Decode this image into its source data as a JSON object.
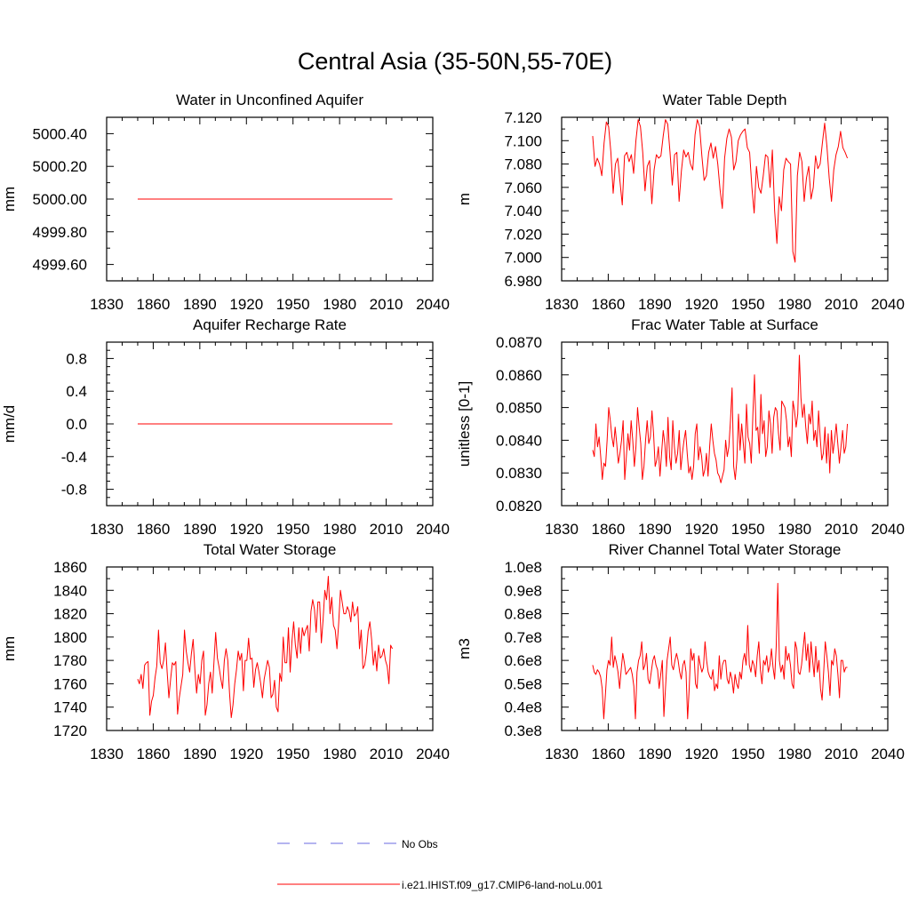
{
  "title": "Central Asia (35-50N,55-70E)",
  "legend": {
    "entries": [
      {
        "label": "No Obs",
        "color": "#6a6ae0",
        "style": "dashed"
      },
      {
        "label": "i.e21.IHIST.f09_g17.CMIP6-land-noLu.001",
        "color": "#ff0000",
        "style": "solid"
      }
    ]
  },
  "chart_data": [
    {
      "type": "line",
      "title": "Water in Unconfined Aquifer",
      "ylabel": "mm",
      "xlim": [
        1830,
        2040
      ],
      "ylim": [
        4999.5,
        5000.5
      ],
      "xticks": [
        1830,
        1860,
        1890,
        1920,
        1950,
        1980,
        2010,
        2040
      ],
      "yticks": [
        4999.6,
        4999.8,
        5000.0,
        5000.2,
        5000.4
      ],
      "ytick_labels": [
        "4999.60",
        "4999.80",
        "5000.00",
        "5000.20",
        "5000.40"
      ],
      "series": [
        {
          "color": "#ff0000",
          "x_start": 1850,
          "x_end": 2014,
          "constant": 5000.0
        }
      ]
    },
    {
      "type": "line",
      "title": "Water Table Depth",
      "ylabel": "m",
      "xlim": [
        1830,
        2040
      ],
      "ylim": [
        6.98,
        7.12
      ],
      "xticks": [
        1830,
        1860,
        1890,
        1920,
        1950,
        1980,
        2010,
        2040
      ],
      "yticks": [
        6.98,
        7.0,
        7.02,
        7.04,
        7.06,
        7.08,
        7.1,
        7.12
      ],
      "ytick_labels": [
        "6.980",
        "7.000",
        "7.020",
        "7.040",
        "7.060",
        "7.080",
        "7.100",
        "7.120"
      ],
      "series": [
        {
          "color": "#ff0000",
          "x_start": 1850,
          "x_step": 1,
          "values": [
            7.104,
            7.078,
            7.085,
            7.08,
            7.07,
            7.098,
            7.116,
            7.112,
            7.09,
            7.055,
            7.08,
            7.085,
            7.065,
            7.045,
            7.087,
            7.09,
            7.082,
            7.088,
            7.072,
            7.1,
            7.118,
            7.112,
            7.09,
            7.057,
            7.078,
            7.083,
            7.046,
            7.075,
            7.088,
            7.085,
            7.087,
            7.104,
            7.118,
            7.114,
            7.09,
            7.062,
            7.088,
            7.09,
            7.048,
            7.074,
            7.092,
            7.086,
            7.09,
            7.08,
            7.075,
            7.105,
            7.118,
            7.112,
            7.087,
            7.066,
            7.07,
            7.09,
            7.098,
            7.085,
            7.095,
            7.08,
            7.058,
            7.042,
            7.085,
            7.102,
            7.11,
            7.103,
            7.075,
            7.082,
            7.1,
            7.105,
            7.108,
            7.11,
            7.094,
            7.09,
            7.06,
            7.038,
            7.078,
            7.06,
            7.055,
            7.07,
            7.088,
            7.086,
            7.06,
            7.092,
            7.04,
            7.012,
            7.052,
            7.04,
            7.075,
            7.085,
            7.082,
            7.08,
            7.005,
            6.996,
            7.07,
            7.09,
            7.082,
            7.048,
            7.068,
            7.078,
            7.05,
            7.06,
            7.087,
            7.076,
            7.08,
            7.098,
            7.115,
            7.095,
            7.068,
            7.048,
            7.075,
            7.088,
            7.095,
            7.108,
            7.094,
            7.09,
            7.085
          ]
        }
      ]
    },
    {
      "type": "line",
      "title": "Aquifer Recharge Rate",
      "ylabel": "mm/d",
      "xlim": [
        1830,
        2040
      ],
      "ylim": [
        -1.0,
        1.0
      ],
      "xticks": [
        1830,
        1860,
        1890,
        1920,
        1950,
        1980,
        2010,
        2040
      ],
      "yticks": [
        -0.8,
        -0.4,
        0.0,
        0.4,
        0.8
      ],
      "ytick_labels": [
        "-0.8",
        "-0.4",
        "0.0",
        "0.4",
        "0.8"
      ],
      "series": [
        {
          "color": "#ff0000",
          "x_start": 1850,
          "x_end": 2014,
          "constant": 0.0
        }
      ]
    },
    {
      "type": "line",
      "title": "Frac Water Table at Surface",
      "ylabel": "unitless [0-1]",
      "xlim": [
        1830,
        2040
      ],
      "ylim": [
        0.082,
        0.087
      ],
      "xticks": [
        1830,
        1860,
        1890,
        1920,
        1950,
        1980,
        2010,
        2040
      ],
      "yticks": [
        0.082,
        0.083,
        0.084,
        0.085,
        0.086,
        0.087
      ],
      "ytick_labels": [
        "0.0820",
        "0.0830",
        "0.0840",
        "0.0850",
        "0.0860",
        "0.0870"
      ],
      "series": [
        {
          "color": "#ff0000",
          "x_start": 1850,
          "x_step": 1,
          "values": [
            0.0837,
            0.0835,
            0.0845,
            0.0838,
            0.0841,
            0.0835,
            0.0828,
            0.0833,
            0.0832,
            0.084,
            0.085,
            0.0846,
            0.0841,
            0.0838,
            0.0844,
            0.0839,
            0.0833,
            0.0836,
            0.084,
            0.0846,
            0.0828,
            0.0835,
            0.0842,
            0.0837,
            0.0846,
            0.084,
            0.0832,
            0.0838,
            0.085,
            0.0844,
            0.0839,
            0.0828,
            0.0832,
            0.084,
            0.0846,
            0.0839,
            0.0841,
            0.0849,
            0.0842,
            0.0832,
            0.0834,
            0.0838,
            0.0829,
            0.0836,
            0.0843,
            0.0839,
            0.0832,
            0.0847,
            0.0835,
            0.0831,
            0.0846,
            0.0838,
            0.0833,
            0.0836,
            0.0843,
            0.0831,
            0.0836,
            0.084,
            0.0843,
            0.0836,
            0.083,
            0.0832,
            0.0828,
            0.0832,
            0.0842,
            0.0845,
            0.0834,
            0.0838,
            0.0835,
            0.0829,
            0.0831,
            0.0836,
            0.0829,
            0.0838,
            0.0845,
            0.084,
            0.0836,
            0.0834,
            0.083,
            0.0829,
            0.0827,
            0.0829,
            0.0831,
            0.084,
            0.0835,
            0.0838,
            0.0846,
            0.0856,
            0.0832,
            0.0828,
            0.0834,
            0.0848,
            0.0837,
            0.0845,
            0.0839,
            0.0833,
            0.0851,
            0.0841,
            0.0839,
            0.0833,
            0.0848,
            0.086,
            0.0843,
            0.0844,
            0.0836,
            0.0854,
            0.0842,
            0.0846,
            0.0835,
            0.0838,
            0.0849,
            0.0845,
            0.0836,
            0.0847,
            0.085,
            0.0849,
            0.0842,
            0.0837,
            0.0852,
            0.0851,
            0.085,
            0.0846,
            0.0838,
            0.0841,
            0.0835,
            0.0852,
            0.0849,
            0.0844,
            0.0848,
            0.0866,
            0.0853,
            0.0847,
            0.0851,
            0.0844,
            0.0839,
            0.0848,
            0.0845,
            0.0852,
            0.084,
            0.0843,
            0.0838,
            0.0849,
            0.0841,
            0.0834,
            0.0836,
            0.0844,
            0.0833,
            0.0842,
            0.083,
            0.0843,
            0.0836,
            0.084,
            0.0845,
            0.0839,
            0.0833,
            0.0838,
            0.0843,
            0.0836,
            0.0838,
            0.0845
          ]
        }
      ]
    },
    {
      "type": "line",
      "title": "Total Water Storage",
      "ylabel": "mm",
      "xlim": [
        1830,
        2040
      ],
      "ylim": [
        1720,
        1860
      ],
      "xticks": [
        1830,
        1860,
        1890,
        1920,
        1950,
        1980,
        2010,
        2040
      ],
      "yticks": [
        1720,
        1740,
        1760,
        1780,
        1800,
        1820,
        1840,
        1860
      ],
      "ytick_labels": [
        "1720",
        "1740",
        "1760",
        "1780",
        "1800",
        "1820",
        "1840",
        "1860"
      ],
      "series": [
        {
          "color": "#ff0000",
          "x_start": 1850,
          "x_step": 1,
          "values": [
            1764,
            1760,
            1768,
            1756,
            1776,
            1778,
            1779,
            1733,
            1745,
            1750,
            1765,
            1775,
            1806,
            1778,
            1773,
            1780,
            1795,
            1770,
            1748,
            1764,
            1778,
            1776,
            1779,
            1734,
            1748,
            1758,
            1768,
            1806,
            1788,
            1778,
            1770,
            1786,
            1798,
            1772,
            1752,
            1768,
            1760,
            1780,
            1788,
            1733,
            1742,
            1760,
            1770,
            1752,
            1778,
            1804,
            1782,
            1774,
            1764,
            1756,
            1780,
            1790,
            1780,
            1752,
            1731,
            1742,
            1760,
            1772,
            1788,
            1780,
            1786,
            1754,
            1780,
            1780,
            1799,
            1781,
            1782,
            1757,
            1772,
            1778,
            1770,
            1760,
            1748,
            1764,
            1772,
            1780,
            1774,
            1748,
            1751,
            1763,
            1740,
            1736,
            1769,
            1762,
            1800,
            1778,
            1778,
            1808,
            1770,
            1796,
            1813,
            1793,
            1782,
            1808,
            1786,
            1808,
            1801,
            1806,
            1810,
            1788,
            1822,
            1832,
            1824,
            1804,
            1830,
            1830,
            1795,
            1815,
            1840,
            1832,
            1852,
            1820,
            1834,
            1810,
            1806,
            1790,
            1812,
            1840,
            1830,
            1820,
            1820,
            1826,
            1822,
            1813,
            1830,
            1818,
            1820,
            1826,
            1790,
            1806,
            1773,
            1776,
            1787,
            1805,
            1813,
            1798,
            1776,
            1788,
            1771,
            1793,
            1782,
            1784,
            1790,
            1780,
            1775,
            1760,
            1793,
            1790
          ]
        }
      ]
    },
    {
      "type": "line",
      "title": "River Channel Total Water Storage",
      "ylabel": "m3",
      "xlim": [
        1830,
        2040
      ],
      "ylim": [
        0.3,
        1.0
      ],
      "xticks": [
        1830,
        1860,
        1890,
        1920,
        1950,
        1980,
        2010,
        2040
      ],
      "yticks": [
        0.3,
        0.4,
        0.5,
        0.6,
        0.7,
        0.8,
        0.9,
        1.0
      ],
      "ytick_labels": [
        "0.3e8",
        "0.4e8",
        "0.5e8",
        "0.6e8",
        "0.7e8",
        "0.8e8",
        "0.9e8",
        "1.0e8"
      ],
      "series": [
        {
          "color": "#ff0000",
          "x_start": 1850,
          "x_step": 1,
          "values": [
            0.58,
            0.55,
            0.54,
            0.56,
            0.55,
            0.53,
            0.48,
            0.35,
            0.45,
            0.56,
            0.6,
            0.58,
            0.7,
            0.57,
            0.62,
            0.59,
            0.55,
            0.48,
            0.56,
            0.63,
            0.59,
            0.54,
            0.55,
            0.56,
            0.57,
            0.54,
            0.49,
            0.35,
            0.55,
            0.6,
            0.62,
            0.68,
            0.56,
            0.58,
            0.63,
            0.52,
            0.5,
            0.55,
            0.6,
            0.62,
            0.58,
            0.56,
            0.48,
            0.54,
            0.6,
            0.36,
            0.48,
            0.6,
            0.65,
            0.7,
            0.58,
            0.56,
            0.6,
            0.63,
            0.6,
            0.55,
            0.52,
            0.58,
            0.6,
            0.55,
            0.35,
            0.48,
            0.65,
            0.6,
            0.63,
            0.5,
            0.48,
            0.62,
            0.58,
            0.55,
            0.57,
            0.68,
            0.6,
            0.55,
            0.53,
            0.52,
            0.56,
            0.47,
            0.5,
            0.48,
            0.62,
            0.52,
            0.58,
            0.6,
            0.6,
            0.52,
            0.5,
            0.55,
            0.52,
            0.46,
            0.54,
            0.5,
            0.48,
            0.55,
            0.52,
            0.6,
            0.63,
            0.58,
            0.75,
            0.58,
            0.55,
            0.6,
            0.58,
            0.53,
            0.62,
            0.68,
            0.56,
            0.5,
            0.6,
            0.58,
            0.62,
            0.55,
            0.58,
            0.65,
            0.57,
            0.52,
            0.66,
            0.93,
            0.6,
            0.55,
            0.58,
            0.52,
            0.66,
            0.6,
            0.63,
            0.58,
            0.5,
            0.48,
            0.68,
            0.65,
            0.55,
            0.54,
            0.58,
            0.65,
            0.72,
            0.6,
            0.67,
            0.55,
            0.68,
            0.6,
            0.53,
            0.66,
            0.55,
            0.6,
            0.48,
            0.43,
            0.55,
            0.68,
            0.62,
            0.55,
            0.45,
            0.6,
            0.58,
            0.65,
            0.62,
            0.54,
            0.44,
            0.6,
            0.6,
            0.55,
            0.57,
            0.57
          ]
        }
      ]
    }
  ]
}
